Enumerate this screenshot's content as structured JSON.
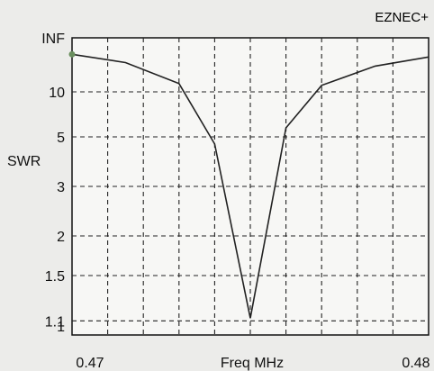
{
  "chart_data": {
    "type": "line",
    "title": "",
    "brand": "EZNEC+",
    "xlabel": "Freq MHz",
    "ylabel": "SWR",
    "xlim": [
      0.47,
      0.48
    ],
    "x_tick_labels": [
      "0.47",
      "0.48"
    ],
    "y_scale": "reflection-coefficient (SWR)",
    "y_ticks": [
      {
        "label": "INF",
        "value": "inf"
      },
      {
        "label": "10",
        "value": 10
      },
      {
        "label": "5",
        "value": 5
      },
      {
        "label": "3",
        "value": 3
      },
      {
        "label": "2",
        "value": 2
      },
      {
        "label": "1.5",
        "value": 1.5
      },
      {
        "label": "1.1",
        "value": 1.1
      },
      {
        "label": "1",
        "value": 1
      }
    ],
    "grid": true,
    "series": [
      {
        "x": [
          0.47,
          0.4715,
          0.473,
          0.474,
          0.475,
          0.476,
          0.477,
          0.4785,
          0.48
        ],
        "y": [
          35,
          23,
          12,
          4.6,
          1.12,
          5.6,
          11.5,
          20,
          30
        ]
      }
    ],
    "colors": {
      "background": "#ececea",
      "plot": "#f7f7f5",
      "line": "#222222",
      "grid": "#222222",
      "marker": "#6a8f5e"
    }
  }
}
